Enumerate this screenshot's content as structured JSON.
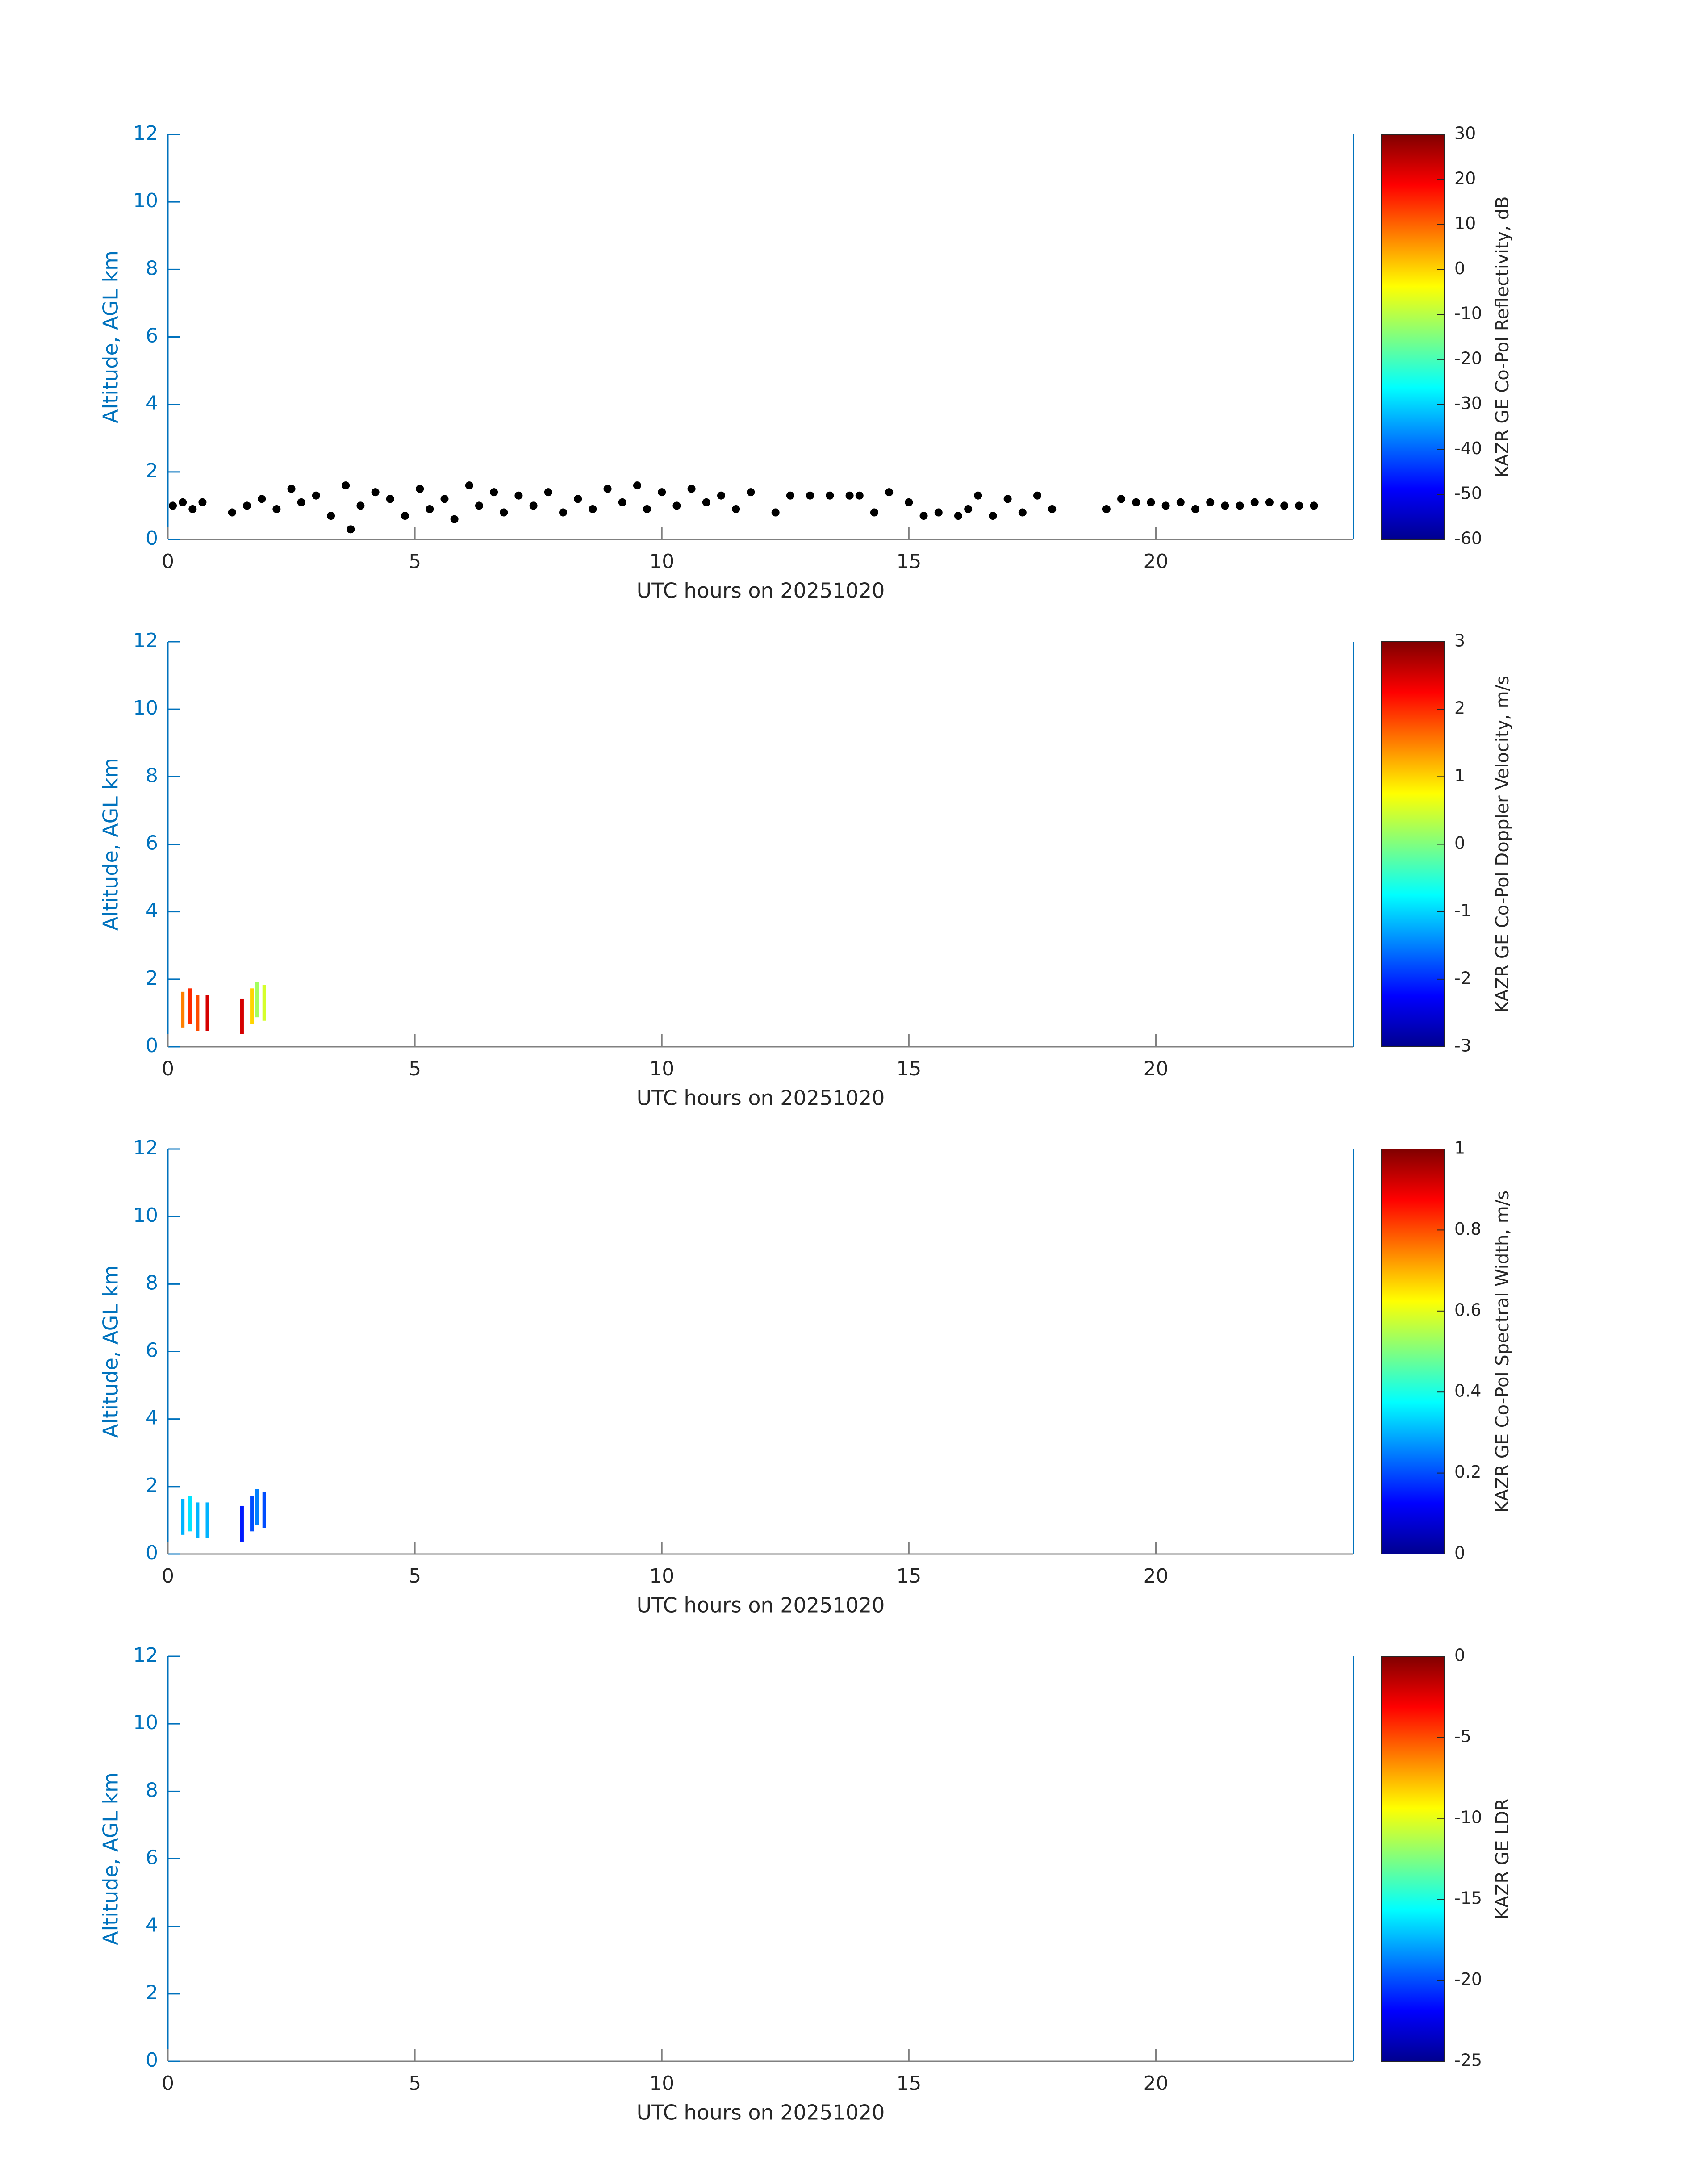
{
  "chart_data": [
    {
      "type": "scatter",
      "xlabel": "UTC hours on 20251020",
      "ylabel": "Altitude, AGL km",
      "xlim": [
        0,
        24
      ],
      "ylim": [
        0,
        12
      ],
      "xticks": [
        0,
        5,
        10,
        15,
        20
      ],
      "yticks": [
        0,
        2,
        4,
        6,
        8,
        10,
        12
      ],
      "color": "#000000",
      "x": [
        0.1,
        0.3,
        0.5,
        0.7,
        1.3,
        1.6,
        1.9,
        2.2,
        2.5,
        2.7,
        3.0,
        3.3,
        3.6,
        3.7,
        3.9,
        4.2,
        4.5,
        4.8,
        5.1,
        5.3,
        5.6,
        5.8,
        6.1,
        6.3,
        6.6,
        6.8,
        7.1,
        7.4,
        7.7,
        8.0,
        8.3,
        8.6,
        8.9,
        9.2,
        9.5,
        9.7,
        10.0,
        10.3,
        10.6,
        10.9,
        11.2,
        11.5,
        11.8,
        12.3,
        12.6,
        13.0,
        13.4,
        13.8,
        14.0,
        14.3,
        14.6,
        15.0,
        15.3,
        15.6,
        16.0,
        16.2,
        16.4,
        16.7,
        17.0,
        17.3,
        17.6,
        17.9,
        19.0,
        19.3,
        19.6,
        19.9,
        20.2,
        20.5,
        20.8,
        21.1,
        21.4,
        21.7,
        22.0,
        22.3,
        22.6,
        22.9,
        23.2
      ],
      "values": [
        1.0,
        1.1,
        0.9,
        1.1,
        0.8,
        1.0,
        1.2,
        0.9,
        1.5,
        1.1,
        1.3,
        0.7,
        1.6,
        0.3,
        1.0,
        1.4,
        1.2,
        0.7,
        1.5,
        0.9,
        1.2,
        0.6,
        1.6,
        1.0,
        1.4,
        0.8,
        1.3,
        1.0,
        1.4,
        0.8,
        1.2,
        0.9,
        1.5,
        1.1,
        1.6,
        0.9,
        1.4,
        1.0,
        1.5,
        1.1,
        1.3,
        0.9,
        1.4,
        0.8,
        1.3,
        1.3,
        1.3,
        1.3,
        1.3,
        0.8,
        1.4,
        1.1,
        0.7,
        0.8,
        0.7,
        0.9,
        1.3,
        0.7,
        1.2,
        0.8,
        1.3,
        0.9,
        0.9,
        1.2,
        1.1,
        1.1,
        1.0,
        1.1,
        0.9,
        1.1,
        1.0,
        1.0,
        1.1,
        1.1,
        1.0,
        1.0,
        1.0
      ],
      "colorbar": {
        "label": "KAZR GE Co-Pol Reflectivity, dB",
        "clim": [
          -60,
          30
        ],
        "ticks": [
          -60,
          -50,
          -40,
          -30,
          -20,
          -10,
          0,
          10,
          20,
          30
        ]
      }
    },
    {
      "type": "scatter",
      "xlabel": "UTC hours on 20251020",
      "ylabel": "Altitude, AGL km",
      "xlim": [
        0,
        24
      ],
      "ylim": [
        0,
        12
      ],
      "xticks": [
        0,
        5,
        10,
        15,
        20
      ],
      "yticks": [
        0,
        2,
        4,
        6,
        8,
        10,
        12
      ],
      "x": [
        0.3,
        0.45,
        0.6,
        0.8,
        1.5,
        1.7,
        1.8,
        1.95
      ],
      "values": [
        1.1,
        1.2,
        1.0,
        1.0,
        0.9,
        1.2,
        1.4,
        1.3
      ],
      "z": [
        1.5,
        2,
        1.8,
        2.5,
        2.5,
        1,
        0.2,
        0.5
      ],
      "colorbar": {
        "label": "KAZR GE Co-Pol Doppler Velocity, m/s",
        "clim": [
          -3,
          3
        ],
        "ticks": [
          -3,
          -2,
          -1,
          0,
          1,
          2,
          3
        ]
      }
    },
    {
      "type": "scatter",
      "xlabel": "UTC hours on 20251020",
      "ylabel": "Altitude, AGL km",
      "xlim": [
        0,
        24
      ],
      "ylim": [
        0,
        12
      ],
      "xticks": [
        0,
        5,
        10,
        15,
        20
      ],
      "yticks": [
        0,
        2,
        4,
        6,
        8,
        10,
        12
      ],
      "x": [
        0.3,
        0.45,
        0.6,
        0.8,
        1.5,
        1.7,
        1.8,
        1.95
      ],
      "values": [
        1.1,
        1.2,
        1.0,
        1.0,
        0.9,
        1.2,
        1.4,
        1.3
      ],
      "z": [
        0.3,
        0.35,
        0.3,
        0.3,
        0.15,
        0.2,
        0.25,
        0.2
      ],
      "colorbar": {
        "label": "KAZR GE Co-Pol Spectral Width, m/s",
        "clim": [
          0,
          1
        ],
        "ticks": [
          0,
          0.2,
          0.4,
          0.6,
          0.8,
          1
        ]
      }
    },
    {
      "type": "scatter",
      "xlabel": "UTC hours on 20251020",
      "ylabel": "Altitude, AGL km",
      "xlim": [
        0,
        24
      ],
      "ylim": [
        0,
        12
      ],
      "xticks": [
        0,
        5,
        10,
        15,
        20
      ],
      "yticks": [
        0,
        2,
        4,
        6,
        8,
        10,
        12
      ],
      "x": [],
      "values": [],
      "colorbar": {
        "label": "KAZR GE LDR",
        "clim": [
          -25,
          0
        ],
        "ticks": [
          -25,
          -20,
          -15,
          -10,
          -5,
          0
        ]
      }
    }
  ]
}
